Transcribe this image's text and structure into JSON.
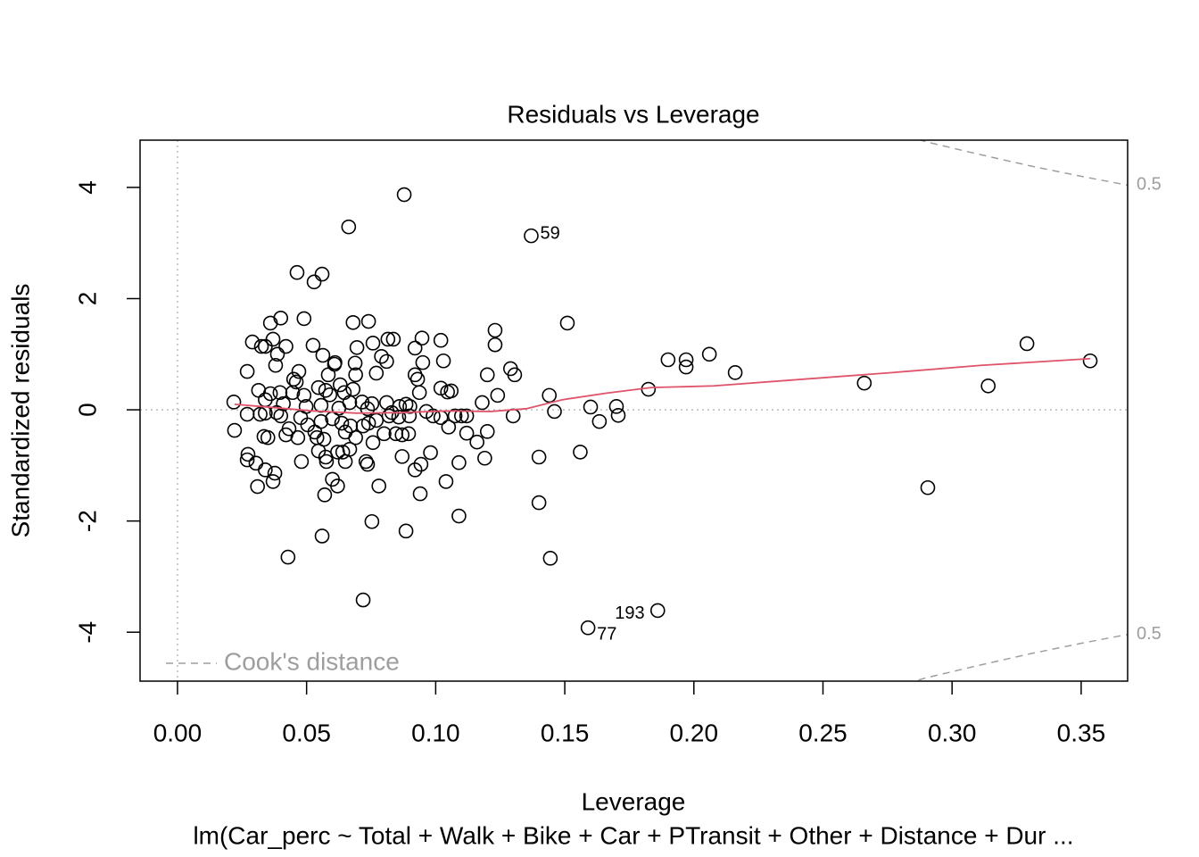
{
  "chart_data": {
    "type": "scatter",
    "title": "Residuals vs Leverage",
    "x_label": "Leverage",
    "y_label": "Standardized residuals",
    "subtitle": "lm(Car_perc ~ Total + Walk + Bike + Car + PTransit + Other + Distance + Dur ...",
    "xlim": [
      -0.0145,
      0.368
    ],
    "ylim": [
      -4.88,
      4.85
    ],
    "xticks": [
      {
        "value": 0,
        "label": "0.00"
      },
      {
        "value": 0.05,
        "label": "0.05"
      },
      {
        "value": 0.1,
        "label": "0.10"
      },
      {
        "value": 0.15,
        "label": "0.15"
      },
      {
        "value": 0.2,
        "label": "0.20"
      },
      {
        "value": 0.25,
        "label": "0.25"
      },
      {
        "value": 0.3,
        "label": "0.30"
      },
      {
        "value": 0.35,
        "label": "0.35"
      }
    ],
    "yticks": [
      -4,
      -2,
      0,
      2,
      4
    ],
    "reference_lines": {
      "x": 0,
      "y": 0
    },
    "point_color": "#000000",
    "x": [
      0.0878,
      0.0663,
      0.137,
      0.0463,
      0.056,
      0.0529,
      0.036,
      0.04,
      0.049,
      0.068,
      0.074,
      0.151,
      0.123,
      0.123,
      0.029,
      0.0325,
      0.034,
      0.037,
      0.042,
      0.0525,
      0.0695,
      0.0757,
      0.0815,
      0.0836,
      0.092,
      0.0947,
      0.102,
      0.329,
      0.19,
      0.197,
      0.197,
      0.206,
      0.216,
      0.266,
      0.314,
      0.3535,
      0.1824,
      0.2906,
      0.0387,
      0.038,
      0.027,
      0.047,
      0.0563,
      0.0608,
      0.061,
      0.0688,
      0.069,
      0.077,
      0.079,
      0.081,
      0.095,
      0.092,
      0.093,
      0.103,
      0.12,
      0.129,
      0.1306,
      0.0937,
      0.102,
      0.1046,
      0.106,
      0.124,
      0.118,
      0.144,
      0.146,
      0.16,
      0.17,
      0.1707,
      0.1634,
      0.13,
      0.156,
      0.14,
      0.14,
      0.1444,
      0.159,
      0.186,
      0.0719,
      0.0428,
      0.056,
      0.0753,
      0.0885,
      0.109,
      0.057,
      0.094,
      0.104,
      0.062,
      0.06,
      0.078,
      0.031,
      0.037,
      0.0377,
      0.034,
      0.0304,
      0.027,
      0.0273,
      0.048,
      0.0736,
      0.073,
      0.092,
      0.0943,
      0.109,
      0.098,
      0.087,
      0.119,
      0.065,
      0.0574,
      0.0577,
      0.062,
      0.064,
      0.0546,
      0.0667,
      0.0757,
      0.116,
      0.112,
      0.12,
      0.105,
      0.0895,
      0.087,
      0.0846,
      0.08,
      0.069,
      0.065,
      0.0567,
      0.054,
      0.0532,
      0.0466,
      0.0432,
      0.042,
      0.035,
      0.0335,
      0.0221,
      0.0218,
      0.027,
      0.032,
      0.034,
      0.0384,
      0.04,
      0.0477,
      0.0504,
      0.0556,
      0.06,
      0.0636,
      0.067,
      0.0719,
      0.074,
      0.077,
      0.0819,
      0.0857,
      0.0898,
      0.0964,
      0.1075,
      0.11,
      0.112,
      0.099,
      0.102,
      0.0314,
      0.034,
      0.036,
      0.0397,
      0.041,
      0.0446,
      0.045,
      0.046,
      0.049,
      0.0546,
      0.0574,
      0.0584,
      0.059,
      0.063,
      0.0646,
      0.068,
      0.0667,
      0.0715,
      0.0753,
      0.081,
      0.086,
      0.09,
      0.0885,
      0.083,
      0.0736,
      0.0625,
      0.0498,
      0.0556
    ],
    "values": [
      3.87,
      3.29,
      3.13,
      2.47,
      2.44,
      2.3,
      1.56,
      1.65,
      1.64,
      1.57,
      1.59,
      1.56,
      1.43,
      1.17,
      1.22,
      1.14,
      1.14,
      1.27,
      1.14,
      1.16,
      1.12,
      1.2,
      1.27,
      1.27,
      1.11,
      1.29,
      1.25,
      1.19,
      0.9,
      0.9,
      0.77,
      1.0,
      0.67,
      0.48,
      0.43,
      0.88,
      0.37,
      -1.4,
      1.0,
      0.8,
      0.69,
      0.69,
      0.98,
      0.82,
      0.85,
      0.84,
      0.63,
      0.66,
      0.96,
      0.87,
      0.85,
      0.63,
      0.55,
      0.88,
      0.63,
      0.74,
      0.63,
      0.31,
      0.39,
      0.32,
      0.34,
      0.26,
      0.13,
      0.26,
      -0.03,
      0.05,
      0.06,
      -0.1,
      -0.21,
      -0.11,
      -0.76,
      -0.85,
      -1.67,
      -2.67,
      -3.92,
      -3.61,
      -3.42,
      -2.65,
      -2.27,
      -2.01,
      -2.18,
      -1.91,
      -1.53,
      -1.51,
      -1.29,
      -1.37,
      -1.25,
      -1.37,
      -1.38,
      -1.29,
      -1.14,
      -1.08,
      -0.96,
      -0.9,
      -0.8,
      -0.93,
      -0.98,
      -0.93,
      -1.08,
      -0.98,
      -0.95,
      -0.77,
      -0.84,
      -0.87,
      -0.93,
      -0.85,
      -0.93,
      -0.76,
      -0.76,
      -0.74,
      -0.71,
      -0.59,
      -0.58,
      -0.42,
      -0.39,
      -0.31,
      -0.43,
      -0.45,
      -0.43,
      -0.43,
      -0.5,
      -0.4,
      -0.53,
      -0.5,
      -0.4,
      -0.5,
      -0.34,
      -0.45,
      -0.5,
      -0.48,
      -0.37,
      0.14,
      -0.08,
      -0.08,
      -0.06,
      -0.05,
      -0.11,
      -0.14,
      -0.27,
      -0.21,
      -0.16,
      -0.24,
      -0.29,
      -0.29,
      -0.24,
      -0.19,
      -0.11,
      -0.13,
      -0.11,
      -0.03,
      -0.11,
      -0.11,
      -0.11,
      -0.11,
      -0.14,
      0.35,
      0.18,
      0.29,
      0.31,
      0.11,
      0.31,
      0.55,
      0.5,
      0.26,
      0.4,
      0.35,
      0.63,
      0.27,
      0.45,
      0.31,
      0.37,
      0.13,
      0.14,
      0.11,
      0.13,
      0.06,
      0.06,
      0.1,
      -0.05,
      0.02,
      0.03,
      0.06,
      0.08
    ],
    "smooth": {
      "color": "#DF536B",
      "x": [
        0.0221,
        0.0349,
        0.0522,
        0.0694,
        0.0867,
        0.104,
        0.1213,
        0.1351,
        0.1489,
        0.1662,
        0.1835,
        0.2077,
        0.2422,
        0.2768,
        0.3113,
        0.3535
      ],
      "values": [
        0.1,
        0.05,
        -0.02,
        -0.06,
        -0.05,
        -0.02,
        -0.03,
        0.02,
        0.18,
        0.3,
        0.4,
        0.43,
        0.55,
        0.67,
        0.8,
        0.92
      ]
    },
    "cook": {
      "name": "Cook's distance",
      "color": "#9E9E9E",
      "curves": [
        {
          "label": "0.5",
          "x": [
            0.287,
            0.29,
            0.31,
            0.33,
            0.35,
            0.368
          ],
          "values": [
            4.86,
            4.82,
            4.6,
            4.39,
            4.2,
            4.04
          ]
        },
        {
          "label": "0.5",
          "x": [
            0.287,
            0.29,
            0.31,
            0.33,
            0.35,
            0.368
          ],
          "values": [
            -4.86,
            -4.82,
            -4.6,
            -4.39,
            -4.2,
            -4.04
          ]
        }
      ]
    },
    "annotations": [
      {
        "text": "59",
        "x": 0.137,
        "y": 3.13
      },
      {
        "text": "77",
        "x": 0.159,
        "y": -3.92
      },
      {
        "text": "193",
        "x": 0.186,
        "y": -3.61
      }
    ],
    "legend": "bottomleft"
  }
}
